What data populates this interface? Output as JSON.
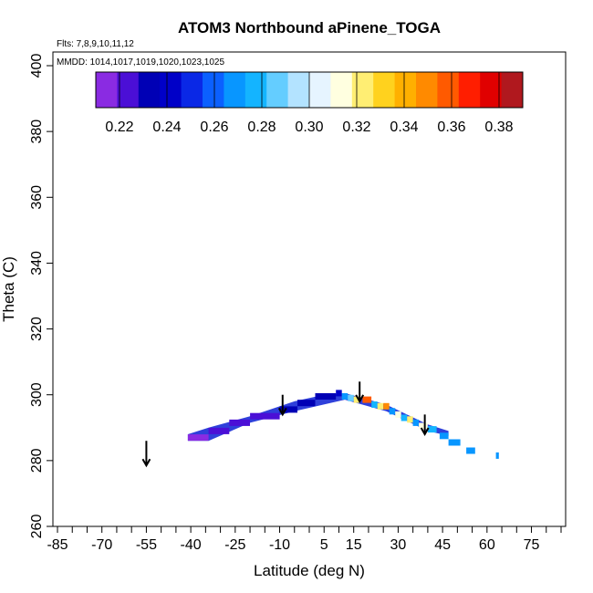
{
  "chart_data": {
    "type": "scatter",
    "title": "ATOM3 Northbound aPinene_TOGA",
    "annotations": {
      "flights": "Flts: 7,8,9,10,11,12",
      "dates": "MMDD: 1014,1017,1019,1020,1023,1025"
    },
    "xlabel": "Latitude (deg N)",
    "ylabel": "Theta (C)",
    "xlim": [
      -85,
      85
    ],
    "ylim": [
      260,
      400
    ],
    "x_ticks": [
      -85,
      -70,
      -55,
      -40,
      -25,
      -10,
      5,
      15,
      30,
      45,
      60,
      75
    ],
    "x_tick_labels": [
      "-85",
      "-70",
      "-55",
      "-40",
      "-25",
      "-10",
      "5",
      "15",
      "30",
      "45",
      "60",
      "75"
    ],
    "x_minor_ticks": [
      -80,
      -75,
      -65,
      -60,
      -50,
      -45,
      -35,
      -30,
      -20,
      -15,
      -5,
      0,
      10,
      20,
      25,
      35,
      40,
      50,
      55,
      65,
      70,
      80,
      85
    ],
    "y_ticks": [
      260,
      280,
      300,
      320,
      340,
      360,
      380,
      400
    ],
    "colorbar": {
      "range": [
        0.21,
        0.39
      ],
      "step": 0.01,
      "tick_values": [
        0.22,
        0.24,
        0.26,
        0.28,
        0.3,
        0.32,
        0.34,
        0.36,
        0.38
      ],
      "tick_labels": [
        "0.22",
        "0.24",
        "0.26",
        "0.28",
        "0.30",
        "0.32",
        "0.34",
        "0.36",
        "0.38"
      ],
      "colors": [
        "#8a2be2",
        "#4b0fd6",
        "#0000b5",
        "#0000c8",
        "#0a28e6",
        "#0b60ff",
        "#0896ff",
        "#14b4ff",
        "#64cdff",
        "#b3e3ff",
        "#e6f4ff",
        "#ffffe0",
        "#ffee73",
        "#ffd21e",
        "#ffb000",
        "#ff8a00",
        "#ff5a00",
        "#ff1e00",
        "#e00000",
        "#b0181e"
      ]
    },
    "segments": [
      {
        "x0": -41,
        "x1": -34,
        "y": 287,
        "value": 0.215
      },
      {
        "x0": -34,
        "x1": -27,
        "y": 289,
        "value": 0.22
      },
      {
        "x0": -27,
        "x1": -20,
        "y": 291.5,
        "value": 0.225
      },
      {
        "x0": -20,
        "x1": -10,
        "y": 293.5,
        "value": 0.225
      },
      {
        "x0": -10,
        "x1": -4,
        "y": 295.5,
        "value": 0.23
      },
      {
        "x0": -4,
        "x1": 2,
        "y": 297.5,
        "value": 0.23
      },
      {
        "x0": 2,
        "x1": 9,
        "y": 299.5,
        "value": 0.235
      },
      {
        "x0": 9,
        "x1": 11,
        "y": 300.5,
        "value": 0.245
      },
      {
        "x0": 11,
        "x1": 13,
        "y": 299.5,
        "value": 0.275
      },
      {
        "x0": 13,
        "x1": 15,
        "y": 299,
        "value": 0.295
      },
      {
        "x0": 15,
        "x1": 17,
        "y": 298.5,
        "value": 0.33
      },
      {
        "x0": 18,
        "x1": 21,
        "y": 298.5,
        "value": 0.37
      },
      {
        "x0": 21,
        "x1": 23,
        "y": 297,
        "value": 0.28
      },
      {
        "x0": 23,
        "x1": 25,
        "y": 296.5,
        "value": 0.33
      },
      {
        "x0": 25,
        "x1": 27,
        "y": 296.5,
        "value": 0.36
      },
      {
        "x0": 27,
        "x1": 29,
        "y": 295,
        "value": 0.27
      },
      {
        "x0": 29,
        "x1": 31,
        "y": 294,
        "value": 0.32
      },
      {
        "x0": 31,
        "x1": 33,
        "y": 293,
        "value": 0.285
      },
      {
        "x0": 33,
        "x1": 35,
        "y": 292.5,
        "value": 0.33
      },
      {
        "x0": 35,
        "x1": 37,
        "y": 291.5,
        "value": 0.275
      },
      {
        "x0": 37,
        "x1": 40,
        "y": 290.5,
        "value": 0.32
      },
      {
        "x0": 40,
        "x1": 43,
        "y": 289.5,
        "value": 0.29
      },
      {
        "x0": 44,
        "x1": 47,
        "y": 287.5,
        "value": 0.275
      },
      {
        "x0": 47,
        "x1": 51,
        "y": 285.5,
        "value": 0.27
      },
      {
        "x0": 53,
        "x1": 56,
        "y": 283,
        "value": 0.27
      },
      {
        "x0": 63,
        "x1": 64,
        "y": 281.5,
        "value": 0.275
      }
    ],
    "envelope": [
      {
        "x": -41,
        "y": 286
      },
      {
        "x": -34,
        "y": 286
      },
      {
        "x": -20,
        "y": 291.5
      },
      {
        "x": -5,
        "y": 295
      },
      {
        "x": 12,
        "y": 298.5
      },
      {
        "x": 26,
        "y": 295
      },
      {
        "x": 40,
        "y": 289
      },
      {
        "x": 47,
        "y": 287.5
      },
      {
        "x": 47,
        "y": 289
      },
      {
        "x": 40,
        "y": 291
      },
      {
        "x": 26,
        "y": 297
      },
      {
        "x": 12,
        "y": 300.5
      },
      {
        "x": 5,
        "y": 300
      },
      {
        "x": -5,
        "y": 298
      },
      {
        "x": -20,
        "y": 293.5
      },
      {
        "x": -34,
        "y": 290
      },
      {
        "x": -41,
        "y": 288
      }
    ],
    "arrows": [
      {
        "x": -55,
        "y_start": 286,
        "y_end": 278.5
      },
      {
        "x": -9,
        "y_start": 300,
        "y_end": 294
      },
      {
        "x": 17,
        "y_start": 304,
        "y_end": 298
      },
      {
        "x": 39,
        "y_start": 294,
        "y_end": 288
      }
    ]
  }
}
